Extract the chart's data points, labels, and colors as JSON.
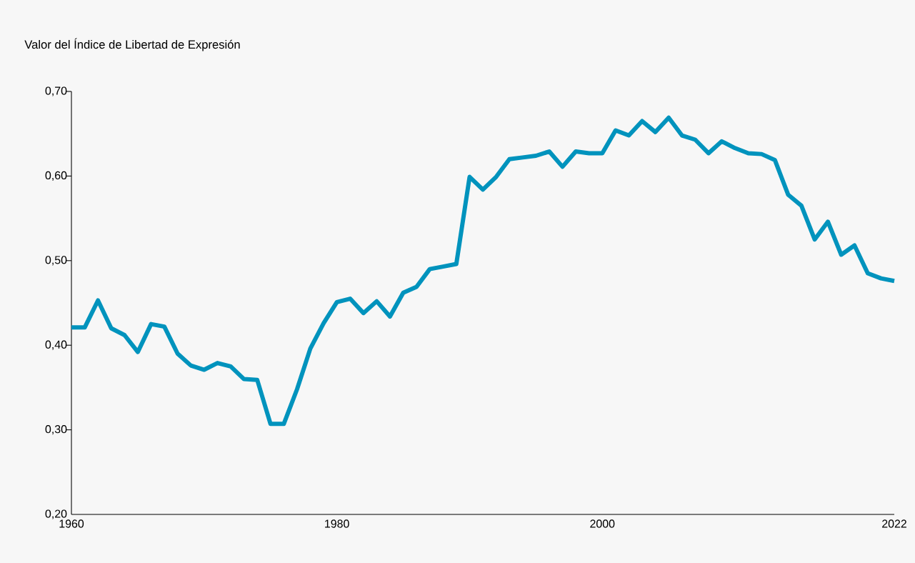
{
  "chart_data": {
    "type": "line",
    "ylabel": "Valor del Índice de Libertad de Expresión",
    "x": [
      1960,
      1961,
      1962,
      1963,
      1964,
      1965,
      1966,
      1967,
      1968,
      1969,
      1970,
      1971,
      1972,
      1973,
      1974,
      1975,
      1976,
      1977,
      1978,
      1979,
      1980,
      1981,
      1982,
      1983,
      1984,
      1985,
      1986,
      1987,
      1988,
      1989,
      1990,
      1991,
      1992,
      1993,
      1994,
      1995,
      1996,
      1997,
      1998,
      1999,
      2000,
      2001,
      2002,
      2003,
      2004,
      2005,
      2006,
      2007,
      2008,
      2009,
      2010,
      2011,
      2012,
      2013,
      2014,
      2015,
      2016,
      2017,
      2018,
      2019,
      2020,
      2021,
      2022
    ],
    "series": [
      {
        "color": "#0093bd",
        "values": [
          0.421,
          0.421,
          0.453,
          0.42,
          0.412,
          0.392,
          0.425,
          0.422,
          0.39,
          0.376,
          0.371,
          0.379,
          0.375,
          0.36,
          0.359,
          0.307,
          0.307,
          0.348,
          0.396,
          0.426,
          0.451,
          0.455,
          0.438,
          0.452,
          0.434,
          0.462,
          0.469,
          0.49,
          0.493,
          0.496,
          0.599,
          0.584,
          0.599,
          0.62,
          0.622,
          0.624,
          0.629,
          0.611,
          0.629,
          0.627,
          0.627,
          0.654,
          0.648,
          0.665,
          0.652,
          0.669,
          0.648,
          0.643,
          0.627,
          0.641,
          0.633,
          0.627,
          0.626,
          0.619,
          0.578,
          0.565,
          0.525,
          0.546,
          0.507,
          0.518,
          0.485,
          0.479,
          0.476
        ]
      }
    ],
    "xlim": [
      1960,
      2022
    ],
    "xticks": [
      1960,
      1980,
      2000,
      2022
    ],
    "ylim": [
      0.2,
      0.7
    ],
    "yticks": [
      {
        "value": 0.2,
        "label": "0,20"
      },
      {
        "value": 0.3,
        "label": "0,30"
      },
      {
        "value": 0.4,
        "label": "0,40"
      },
      {
        "value": 0.5,
        "label": "0,50"
      },
      {
        "value": 0.6,
        "label": "0,60"
      },
      {
        "value": 0.7,
        "label": "0,70"
      }
    ],
    "grid": false,
    "marker": "none",
    "line_style": "solid"
  }
}
